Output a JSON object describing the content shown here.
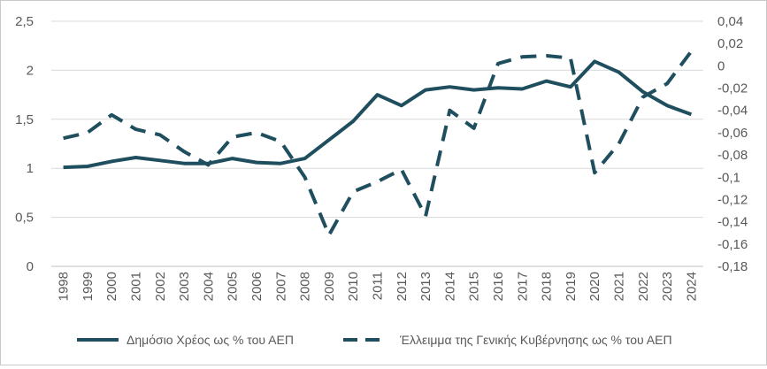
{
  "chart_data": {
    "type": "line",
    "title": "",
    "x": [
      "1998",
      "1999",
      "2000",
      "2001",
      "2002",
      "2003",
      "2004",
      "2005",
      "2006",
      "2007",
      "2008",
      "2009",
      "2010",
      "2011",
      "2012",
      "2013",
      "2014",
      "2015",
      "2016",
      "2017",
      "2018",
      "2019",
      "2020",
      "2021",
      "2022",
      "2023",
      "2024"
    ],
    "series": [
      {
        "name": "Δημόσιο Χρέος ως % του ΑΕΠ",
        "axis": "left",
        "style": "solid",
        "values": [
          1.01,
          1.02,
          1.07,
          1.11,
          1.08,
          1.05,
          1.05,
          1.1,
          1.06,
          1.05,
          1.1,
          1.29,
          1.48,
          1.75,
          1.64,
          1.8,
          1.83,
          1.8,
          1.82,
          1.81,
          1.89,
          1.83,
          2.09,
          1.98,
          1.78,
          1.64,
          1.55
        ]
      },
      {
        "name": "Έλλειμμα της Γενικής Κυβέρνησης ως % του ΑΕΠ",
        "axis": "right",
        "style": "dashed",
        "values": [
          -0.065,
          -0.06,
          -0.044,
          -0.057,
          -0.062,
          -0.077,
          -0.089,
          -0.064,
          -0.06,
          -0.068,
          -0.1,
          -0.152,
          -0.113,
          -0.104,
          -0.093,
          -0.135,
          -0.04,
          -0.056,
          0.002,
          0.008,
          0.009,
          0.007,
          -0.096,
          -0.07,
          -0.028,
          -0.016,
          0.013
        ]
      }
    ],
    "y_left": {
      "ticks": [
        "0",
        "0,5",
        "1",
        "1,5",
        "2",
        "2,5"
      ],
      "ylim": [
        0,
        2.5
      ]
    },
    "y_right": {
      "ticks": [
        "0,04",
        "0,02",
        "0",
        "-0,02",
        "-0,04",
        "-0,06",
        "-0,08",
        "-0,1",
        "-0,12",
        "-0,14",
        "-0,16",
        "-0,18"
      ],
      "ylim": [
        -0.18,
        0.04
      ]
    },
    "grid": true,
    "legend": "bottom",
    "colors": {
      "line": "#1f4e5f",
      "grid": "#d9d9d9",
      "text": "#595959"
    }
  }
}
